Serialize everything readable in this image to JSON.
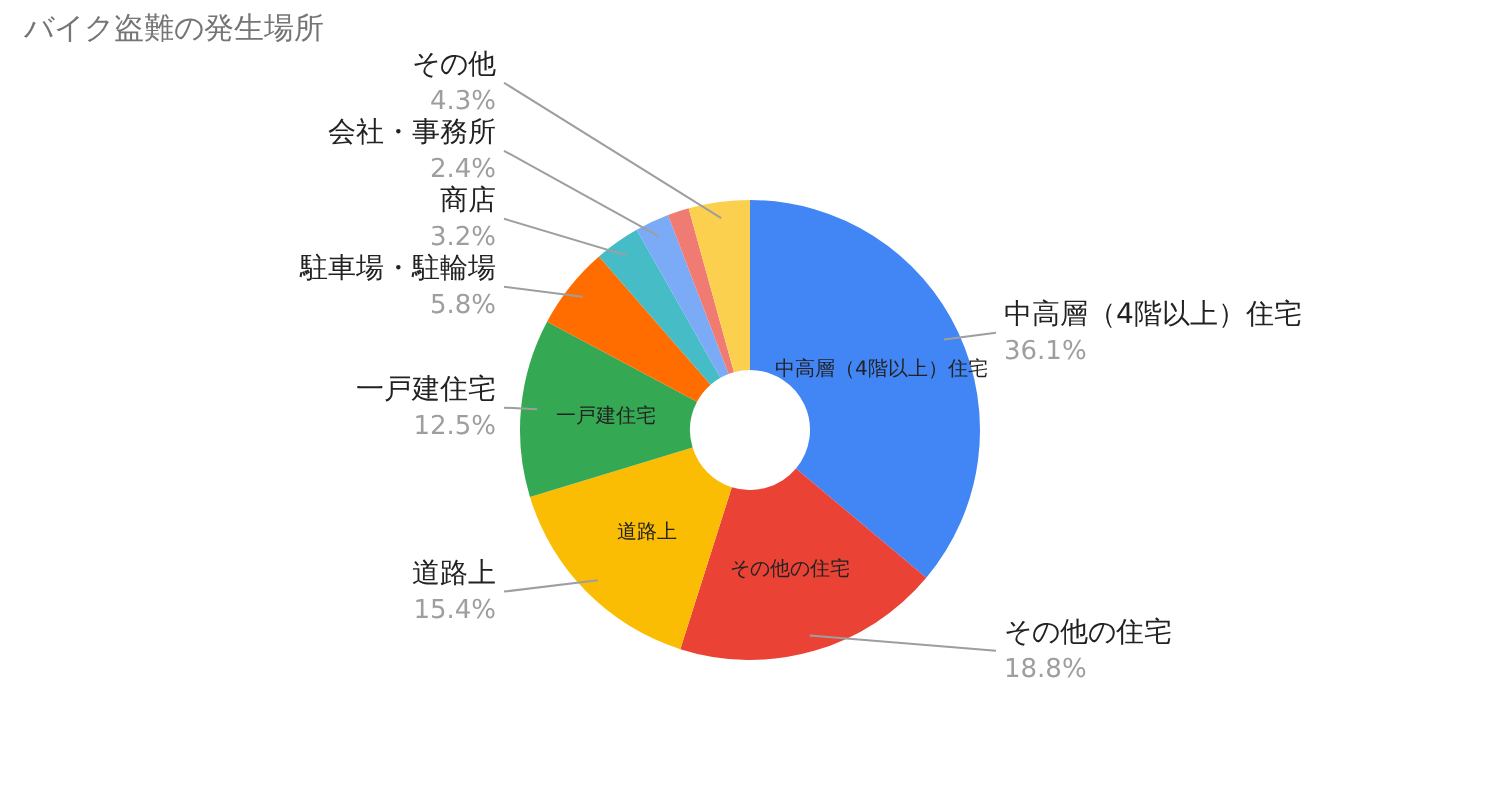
{
  "chart_data": {
    "type": "donut",
    "title": "バイク盗難の発生場所",
    "categories": [
      "中高層（4階以上）住宅",
      "その他の住宅",
      "道路上",
      "一戸建住宅",
      "駐車場・駐輪場",
      "商店",
      "会社・事務所",
      null,
      "その他"
    ],
    "values": [
      36.1,
      18.8,
      15.4,
      12.5,
      5.8,
      3.2,
      2.4,
      1.5,
      4.3
    ],
    "value_labels": [
      "36.1%",
      "18.8%",
      "15.4%",
      "12.5%",
      "5.8%",
      "3.2%",
      "2.4%",
      null,
      "4.3%"
    ],
    "colors": [
      "#4285f4",
      "#ea4335",
      "#fbbc04",
      "#34a853",
      "#ff6d01",
      "#46bdc6",
      "#7baaf7",
      "#f07b72",
      "#fcd04f"
    ]
  }
}
